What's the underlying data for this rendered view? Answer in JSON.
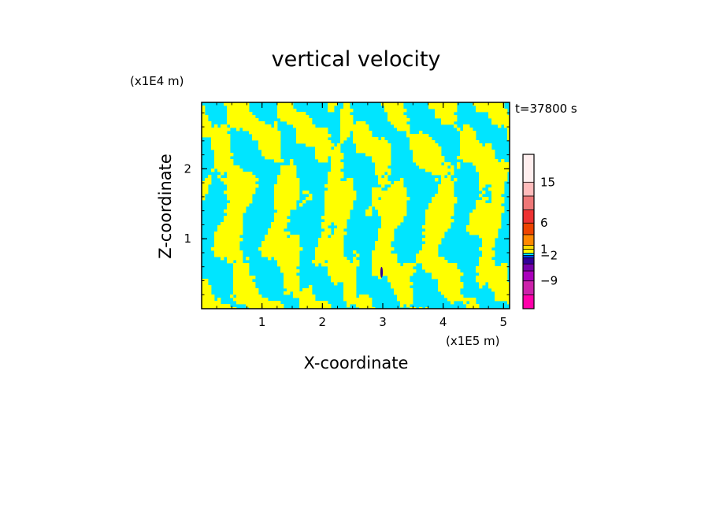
{
  "chart_data": {
    "type": "heatmap",
    "title": "vertical velocity",
    "xlabel": "X-coordinate",
    "ylabel": "Z-coordinate",
    "x_unit": "(x1E5 m)",
    "y_unit": "(x1E4 m)",
    "time_label": "t=37800 s",
    "xlim": [
      0,
      5.1
    ],
    "ylim": [
      0,
      2.95
    ],
    "x_ticks": [
      1,
      2,
      3,
      4,
      5
    ],
    "y_ticks": [
      1,
      2
    ],
    "colorbar": {
      "tick_labels": [
        "15",
        "6",
        "1",
        "−2",
        "−9"
      ],
      "tick_values": [
        15,
        6,
        1,
        -2,
        -9
      ],
      "levels": [
        {
          "color": "#ff00aa"
        },
        {
          "color": "#cc22aa"
        },
        {
          "color": "#aa00bb"
        },
        {
          "color": "#7700aa"
        },
        {
          "color": "#330099"
        },
        {
          "color": "#0044ff"
        },
        {
          "color": "#00e5ff"
        },
        {
          "color": "#ffff00"
        },
        {
          "color": "#ffdd00"
        },
        {
          "color": "#ff8800"
        },
        {
          "color": "#ee4400"
        },
        {
          "color": "#ee3333"
        },
        {
          "color": "#ee7777"
        },
        {
          "color": "#ffbbbb"
        },
        {
          "color": "#ffeeee"
        }
      ]
    },
    "field_colors": {
      "positive": "#ffff00",
      "negative": "#00e5ff",
      "strong_negative": "#330099"
    }
  }
}
